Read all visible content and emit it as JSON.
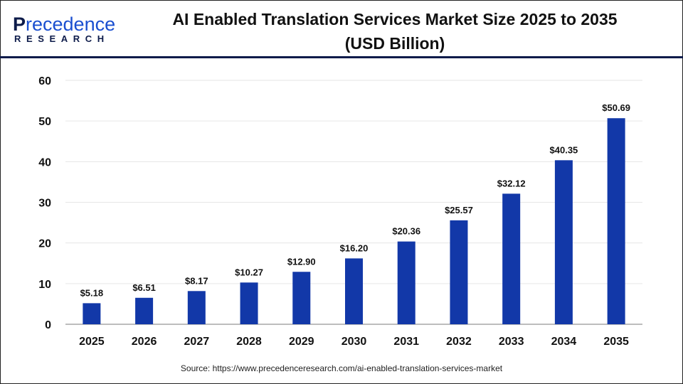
{
  "logo": {
    "text_top": "Precedence",
    "text_bottom": "RESEARCH"
  },
  "title_line1": "AI Enabled Translation Services Market Size 2025 to 2035",
  "title_line2": "(USD Billion)",
  "source": "Source: https://www.precedenceresearch.com/ai-enabled-translation-services-market",
  "colors": {
    "bar": "#1238a8",
    "grid": "#e6e6e6",
    "axis": "#bdbdbd",
    "header_line": "#0d1b4a"
  },
  "chart_data": {
    "type": "bar",
    "title": "AI Enabled Translation Services Market Size 2025 to 2035 (USD Billion)",
    "categories": [
      "2025",
      "2026",
      "2027",
      "2028",
      "2029",
      "2030",
      "2031",
      "2032",
      "2033",
      "2034",
      "2035"
    ],
    "values": [
      5.18,
      6.51,
      8.17,
      10.27,
      12.9,
      16.2,
      20.36,
      25.57,
      32.12,
      40.35,
      50.69
    ],
    "data_labels": [
      "$5.18",
      "$6.51",
      "$8.17",
      "$10.27",
      "$12.90",
      "$16.20",
      "$20.36",
      "$25.57",
      "$32.12",
      "$40.35",
      "$50.69"
    ],
    "yticks": [
      "0",
      "10",
      "20",
      "30",
      "40",
      "50",
      "60"
    ],
    "ylim": [
      0,
      60
    ],
    "grid": true,
    "xlabel": "",
    "ylabel": ""
  }
}
